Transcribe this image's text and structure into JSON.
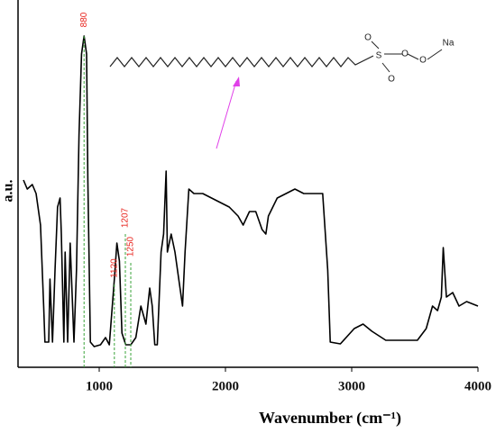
{
  "chart_data": {
    "type": "line",
    "x_label": "Wavenumber (cm⁻¹)",
    "y_label": "a.u.",
    "xlim": [
      357,
      4000
    ],
    "xticks": [
      1000,
      2000,
      3000,
      4000
    ],
    "ylim": [
      0,
      408
    ],
    "series": [
      {
        "name": "spectrum",
        "color": "#000000",
        "x": [
          400,
          430,
          470,
          500,
          535,
          560,
          570,
          600,
          610,
          630,
          650,
          670,
          690,
          700,
          720,
          730,
          750,
          770,
          800,
          820,
          840,
          860,
          880,
          900,
          910,
          930,
          960,
          1010,
          1050,
          1080,
          1120,
          1140,
          1160,
          1180,
          1210,
          1250,
          1290,
          1330,
          1370,
          1400,
          1420,
          1440,
          1460,
          1490,
          1510,
          1530,
          1540,
          1570,
          1600,
          1640,
          1660,
          1680,
          1710,
          1750,
          1820,
          1890,
          1960,
          2030,
          2100,
          2140,
          2190,
          2240,
          2290,
          2320,
          2340,
          2410,
          2480,
          2550,
          2620,
          2700,
          2770,
          2810,
          2830,
          2910,
          3020,
          3090,
          3160,
          3270,
          3410,
          3520,
          3590,
          3640,
          3680,
          3710,
          3725,
          3750,
          3800,
          3850,
          3910,
          4000
        ],
        "values": [
          208,
          198,
          203,
          193,
          158,
          68,
          28,
          28,
          98,
          28,
          108,
          178,
          188,
          148,
          28,
          128,
          28,
          138,
          28,
          108,
          258,
          348,
          368,
          348,
          208,
          28,
          23,
          25,
          33,
          25,
          98,
          138,
          118,
          38,
          25,
          25,
          33,
          68,
          48,
          88,
          68,
          25,
          25,
          128,
          148,
          218,
          128,
          148,
          128,
          88,
          68,
          128,
          198,
          193,
          193,
          188,
          183,
          178,
          168,
          158,
          173,
          173,
          153,
          148,
          168,
          188,
          193,
          198,
          193,
          193,
          193,
          108,
          28,
          26,
          43,
          48,
          40,
          30,
          30,
          30,
          43,
          68,
          63,
          78,
          133,
          78,
          83,
          68,
          73,
          68
        ]
      }
    ],
    "annotations": [
      {
        "x": 880
      },
      {
        "x": 1120
      },
      {
        "x": 1207
      },
      {
        "x": 1250
      }
    ],
    "structure_labels": [
      "O",
      "S",
      "O",
      "O",
      "O",
      "Na"
    ],
    "annotation_color": "#e8261f",
    "guide_color": "#3aa43a",
    "arrow_color": "#e040e8"
  }
}
